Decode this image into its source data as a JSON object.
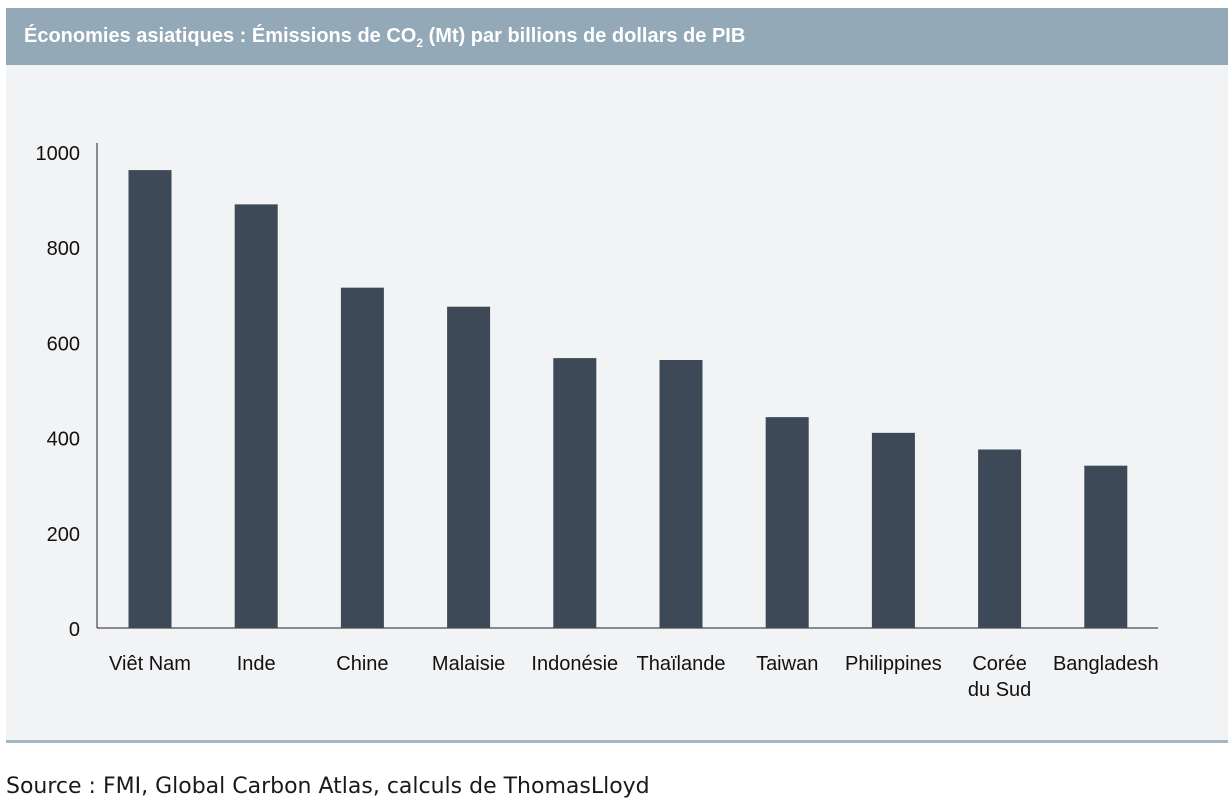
{
  "header": {
    "title_part1": "Économies asiatiques : Émissions de CO",
    "title_sub": "2",
    "title_part2": " (Mt) par billions de dollars de PIB"
  },
  "chart_data": {
    "type": "bar",
    "title": "Économies asiatiques : Émissions de CO2 (Mt) par billions de dollars de PIB",
    "categories": [
      [
        "Viêt Nam"
      ],
      [
        "Inde"
      ],
      [
        "Chine"
      ],
      [
        "Malaisie"
      ],
      [
        "Indonésie"
      ],
      [
        "Thaïlande"
      ],
      [
        "Taiwan"
      ],
      [
        "Philippines"
      ],
      [
        "Corée",
        "du Sud"
      ],
      [
        "Bangladesh"
      ]
    ],
    "values": [
      962,
      890,
      715,
      675,
      567,
      563,
      443,
      410,
      375,
      341
    ],
    "ylim": [
      0,
      1000
    ],
    "yticks": [
      0,
      200,
      400,
      600,
      800,
      1000
    ],
    "bar_color": "#3d4957",
    "axis_color": "#222222",
    "grid": false,
    "legend": "none"
  },
  "colors": {
    "header_bg": "#94a9b8",
    "panel_bg": "#f2f3f5",
    "rule": "#a3b6c4"
  },
  "source": "Source : FMI, Global Carbon Atlas, calculs de ThomasLloyd"
}
